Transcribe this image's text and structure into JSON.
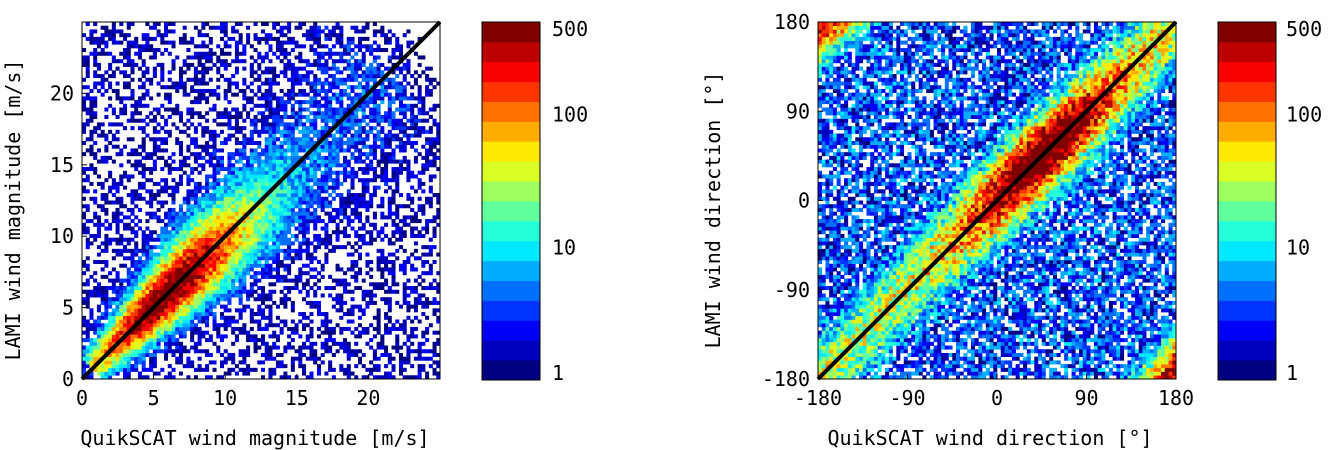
{
  "chart_data": [
    {
      "type": "heatmap",
      "title": "",
      "xlabel": "QuikSCAT wind magnitude [m/s]",
      "ylabel": "LAMI wind magnitude [m/s]",
      "xlim": [
        0,
        25
      ],
      "ylim": [
        0,
        25
      ],
      "xticks": [
        0,
        5,
        10,
        15,
        20
      ],
      "yticks": [
        0,
        5,
        10,
        15,
        20
      ],
      "xtick_labels": [
        "0",
        "5",
        "10",
        "15",
        "20"
      ],
      "ytick_labels": [
        "0",
        "5",
        "10",
        "15",
        "20"
      ],
      "reference_line": {
        "from": [
          0,
          0
        ],
        "to": [
          25,
          25
        ],
        "color": "#000000"
      },
      "density": {
        "peak": [
          6,
          6
        ],
        "peak_count": 500,
        "min_count": 1,
        "trend": "counts concentrated along the y = x diagonal, broadest near 5-10 m/s"
      },
      "colorbar": {
        "scale": "log",
        "range": [
          1,
          500
        ],
        "ticks": [
          1,
          10,
          100,
          500
        ],
        "tick_labels": [
          "1",
          "10",
          "100",
          "500"
        ],
        "levels": 18
      }
    },
    {
      "type": "heatmap",
      "title": "",
      "xlabel": "QuikSCAT wind direction [°]",
      "ylabel": "LAMI wind direction [°]",
      "xlim": [
        -180,
        180
      ],
      "ylim": [
        -180,
        180
      ],
      "xticks": [
        -180,
        -90,
        0,
        90,
        180
      ],
      "yticks": [
        -180,
        -90,
        0,
        90,
        180
      ],
      "xtick_labels": [
        "-180",
        "-90",
        "0",
        "90",
        "180"
      ],
      "ytick_labels": [
        "-180",
        "-90",
        "0",
        "90",
        "180"
      ],
      "reference_line": {
        "from": [
          -180,
          -180
        ],
        "to": [
          180,
          180
        ],
        "color": "#000000"
      },
      "density": {
        "peak": [
          60,
          60
        ],
        "peak_count": 500,
        "min_count": 1,
        "trend": "dense band along the y = x diagonal with wrap-around at the ±180 corners"
      },
      "colorbar": {
        "scale": "log",
        "range": [
          1,
          500
        ],
        "ticks": [
          1,
          10,
          100,
          500
        ],
        "tick_labels": [
          "1",
          "10",
          "100",
          "500"
        ],
        "levels": 18
      }
    }
  ]
}
